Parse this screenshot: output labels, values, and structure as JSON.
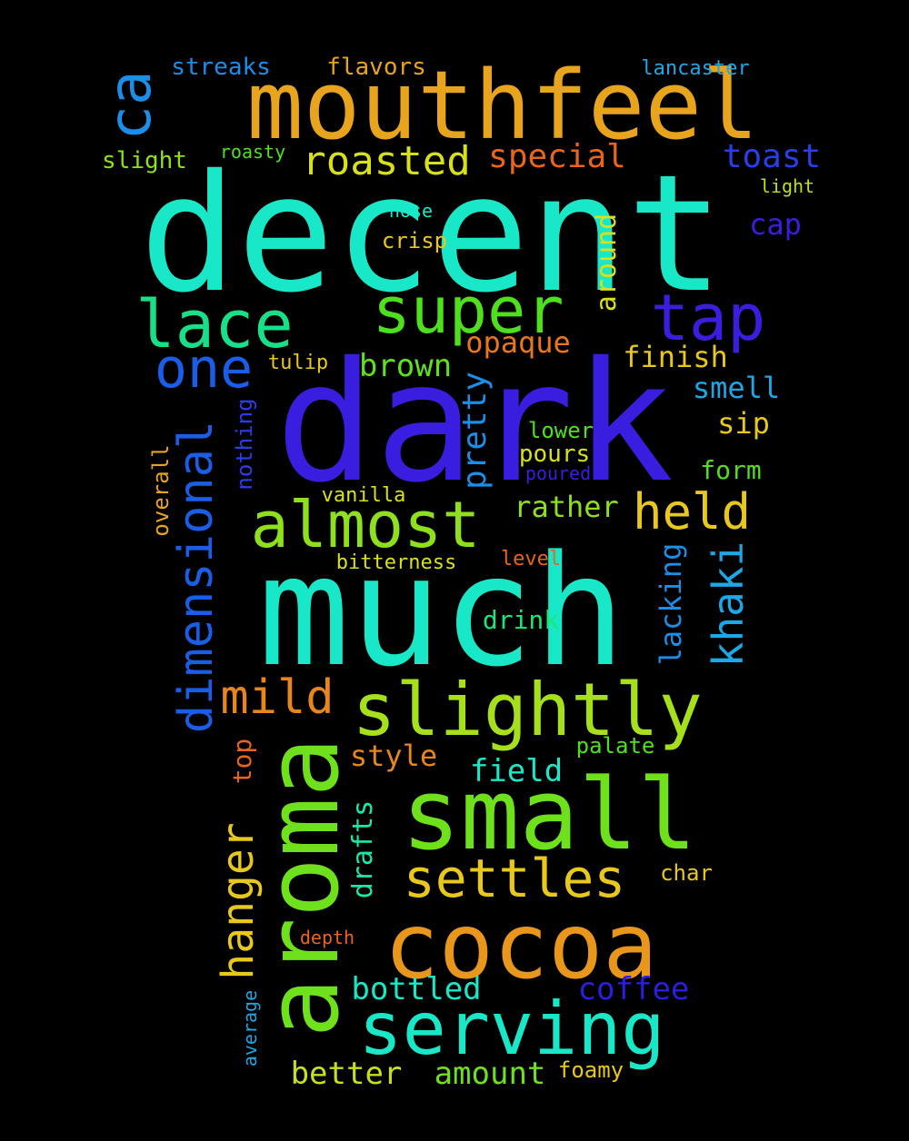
{
  "words": [
    {
      "text": "decent",
      "color": "#19e8c8"
    },
    {
      "text": "dark",
      "color": "#3a1ee0"
    },
    {
      "text": "much",
      "color": "#19e8c8"
    },
    {
      "text": "mouthfeel",
      "color": "#e8a41c"
    },
    {
      "text": "small",
      "color": "#6ee01c"
    },
    {
      "text": "aroma",
      "color": "#6ee01c"
    },
    {
      "text": "cocoa",
      "color": "#e8961c"
    },
    {
      "text": "slightly",
      "color": "#a6e01c"
    },
    {
      "text": "serving",
      "color": "#19e8c8"
    },
    {
      "text": "almost",
      "color": "#8ee01c"
    },
    {
      "text": "super",
      "color": "#4ee01c"
    },
    {
      "text": "lace",
      "color": "#19e088"
    },
    {
      "text": "tap",
      "color": "#3a1ee0"
    },
    {
      "text": "ca",
      "color": "#1a8ee8"
    },
    {
      "text": "dimensional",
      "color": "#1a5ee8"
    },
    {
      "text": "one",
      "color": "#1a5ee8"
    },
    {
      "text": "settles",
      "color": "#e8c81c"
    },
    {
      "text": "hanger",
      "color": "#e8c81c"
    },
    {
      "text": "held",
      "color": "#e8c81c"
    },
    {
      "text": "mild",
      "color": "#e8861c"
    },
    {
      "text": "roasted",
      "color": "#d8e01c"
    },
    {
      "text": "khaki",
      "color": "#1aa8e8"
    },
    {
      "text": "special",
      "color": "#e8661c"
    },
    {
      "text": "pretty",
      "color": "#1a8ee8"
    },
    {
      "text": "toast",
      "color": "#2a3ee8"
    },
    {
      "text": "brown",
      "color": "#5ee01c"
    },
    {
      "text": "opaque",
      "color": "#e8761c"
    },
    {
      "text": "bottled",
      "color": "#19e8c8"
    },
    {
      "text": "coffee",
      "color": "#2a1ee0"
    },
    {
      "text": "finish",
      "color": "#e8c81c"
    },
    {
      "text": "rather",
      "color": "#8ee01c"
    },
    {
      "text": "lacking",
      "color": "#1a8ee8"
    },
    {
      "text": "smell",
      "color": "#1aa8e8"
    },
    {
      "text": "style",
      "color": "#e8861c"
    },
    {
      "text": "field",
      "color": "#19e8c8"
    },
    {
      "text": "better",
      "color": "#c8e01c"
    },
    {
      "text": "amount",
      "color": "#6ee01c"
    },
    {
      "text": "around",
      "color": "#d8e01c"
    },
    {
      "text": "drafts",
      "color": "#19e8a8"
    },
    {
      "text": "cap",
      "color": "#3a1ee0"
    },
    {
      "text": "sip",
      "color": "#e8c81c"
    },
    {
      "text": "top",
      "color": "#e8661c"
    },
    {
      "text": "form",
      "color": "#4ee01c"
    },
    {
      "text": "drink",
      "color": "#19e878"
    },
    {
      "text": "overall",
      "color": "#e8a41c"
    },
    {
      "text": "nothing",
      "color": "#2a3ee8"
    },
    {
      "text": "pours",
      "color": "#d8e01c"
    },
    {
      "text": "flavors",
      "color": "#e8a41c"
    },
    {
      "text": "streaks",
      "color": "#1a8ee8"
    },
    {
      "text": "slight",
      "color": "#8ee01c"
    },
    {
      "text": "lower",
      "color": "#4ee01c"
    },
    {
      "text": "crisp",
      "color": "#e8c81c"
    },
    {
      "text": "vanilla",
      "color": "#d8e01c"
    },
    {
      "text": "palate",
      "color": "#4ee01c"
    },
    {
      "text": "lancaster",
      "color": "#1aa8e8"
    },
    {
      "text": "tulip",
      "color": "#e8c81c"
    },
    {
      "text": "foamy",
      "color": "#e8c81c"
    },
    {
      "text": "char",
      "color": "#e8c81c"
    },
    {
      "text": "level",
      "color": "#e8661c"
    },
    {
      "text": "bitterness",
      "color": "#d8e01c"
    },
    {
      "text": "average",
      "color": "#1aa8e8"
    },
    {
      "text": "roasty",
      "color": "#4ee01c"
    },
    {
      "text": "nose",
      "color": "#19e8c8"
    },
    {
      "text": "light",
      "color": "#b8e01c"
    },
    {
      "text": "poured",
      "color": "#3a1ee0"
    },
    {
      "text": "depth",
      "color": "#e8661c"
    }
  ]
}
